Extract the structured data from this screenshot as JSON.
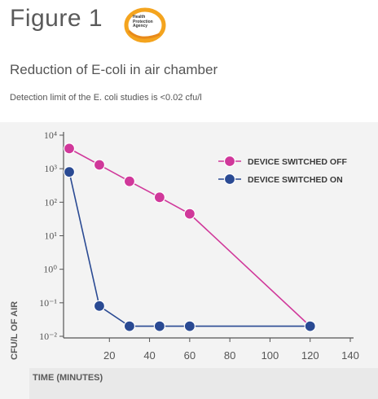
{
  "figure": {
    "title": "Figure 1",
    "logo_text": "Health Protection Agency",
    "subtitle": "Reduction of E-coli in air chamber",
    "note": "Detection limit of the E. coli studies is <0.02 cfu/l"
  },
  "colors": {
    "off": "#d0389a",
    "on": "#2a4a93",
    "logo_orange": "#f4a41e",
    "axis": "#555555"
  },
  "chart_data": {
    "type": "line",
    "title": "Reduction of E-coli in air chamber",
    "xlabel": "TIME (MINUTES)",
    "ylabel": "CFU/L OF AIR",
    "xlim": [
      0,
      140
    ],
    "x_ticks": [
      20,
      40,
      60,
      80,
      100,
      120,
      140
    ],
    "y_scale": "log",
    "ylim": [
      0.01,
      10000
    ],
    "y_ticks": [
      {
        "value": 10000,
        "label": "10⁴"
      },
      {
        "value": 1000,
        "label": "10³"
      },
      {
        "value": 100,
        "label": "10²"
      },
      {
        "value": 10,
        "label": "10¹"
      },
      {
        "value": 1,
        "label": "10⁰"
      },
      {
        "value": 0.1,
        "label": "10⁻¹"
      },
      {
        "value": 0.01,
        "label": "10⁻²"
      }
    ],
    "legend_position": "top-right",
    "grid": false,
    "series": [
      {
        "name": "DEVICE SWITCHED OFF",
        "color": "#d0389a",
        "x": [
          0,
          15,
          30,
          45,
          60,
          120
        ],
        "y": [
          4000,
          1300,
          420,
          140,
          45,
          0.02
        ]
      },
      {
        "name": "DEVICE SWITCHED ON",
        "color": "#2a4a93",
        "x": [
          0,
          15,
          30,
          45,
          60,
          120
        ],
        "y": [
          800,
          0.08,
          0.02,
          0.02,
          0.02,
          0.02
        ]
      }
    ]
  }
}
